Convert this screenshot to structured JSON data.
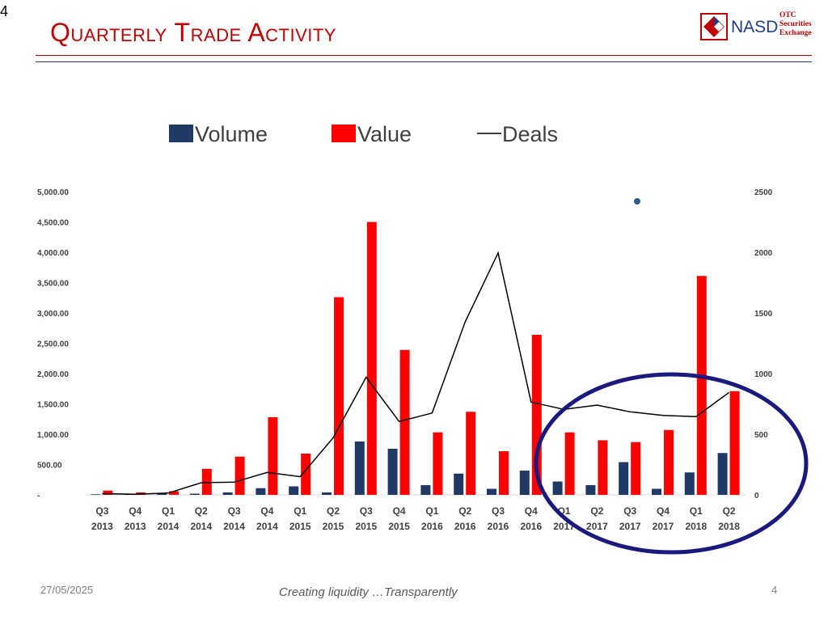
{
  "slide": {
    "corner_number": "4",
    "title": "Quarterly Trade Activity",
    "date": "27/05/2025",
    "tagline": "Creating liquidity …Transparently",
    "page_number": "4"
  },
  "logo": {
    "name": "NASD",
    "subtitle_lines": [
      "OTC",
      "Securities",
      "Exchange"
    ]
  },
  "colors": {
    "volume": "#1f3864",
    "value": "#ff0000",
    "deals": "#000000",
    "highlight_ellipse": "#1a1a7e",
    "title": "#c00000"
  },
  "chart_data": {
    "type": "bar",
    "categories": [
      "Q3 2013",
      "Q4 2013",
      "Q1 2014",
      "Q2 2014",
      "Q3 2014",
      "Q4 2014",
      "Q1 2015",
      "Q2 2015",
      "Q3 2015",
      "Q4 2015",
      "Q1 2016",
      "Q2 2016",
      "Q3 2016",
      "Q4 2016",
      "Q1 2017",
      "Q2 2017",
      "Q3 2017",
      "Q4 2017",
      "Q1 2018",
      "Q2 2018"
    ],
    "category_lines": [
      [
        "Q3",
        "2013"
      ],
      [
        "Q4",
        "2013"
      ],
      [
        "Q1",
        "2014"
      ],
      [
        "Q2",
        "2014"
      ],
      [
        "Q3",
        "2014"
      ],
      [
        "Q4",
        "2014"
      ],
      [
        "Q1",
        "2015"
      ],
      [
        "Q2",
        "2015"
      ],
      [
        "Q3",
        "2015"
      ],
      [
        "Q4",
        "2015"
      ],
      [
        "Q1",
        "2016"
      ],
      [
        "Q2",
        "2016"
      ],
      [
        "Q3",
        "2016"
      ],
      [
        "Q4",
        "2016"
      ],
      [
        "Q1",
        "2017"
      ],
      [
        "Q2",
        "2017"
      ],
      [
        "Q3",
        "2017"
      ],
      [
        "Q4",
        "2017"
      ],
      [
        "Q1",
        "2018"
      ],
      [
        "Q2",
        "2018"
      ]
    ],
    "series": [
      {
        "name": "Volume",
        "axis": "left",
        "kind": "bar",
        "values": [
          10,
          10,
          30,
          20,
          40,
          110,
          140,
          40,
          880,
          760,
          160,
          350,
          100,
          400,
          220,
          160,
          540,
          100,
          370,
          690
        ]
      },
      {
        "name": "Value",
        "axis": "left",
        "kind": "bar",
        "values": [
          70,
          40,
          60,
          430,
          630,
          1280,
          680,
          3260,
          4500,
          2390,
          1030,
          1370,
          720,
          2640,
          1030,
          900,
          870,
          1070,
          3610,
          1710
        ]
      },
      {
        "name": "Deals",
        "axis": "right",
        "kind": "line",
        "values": [
          10,
          5,
          15,
          100,
          105,
          185,
          150,
          470,
          970,
          605,
          675,
          1425,
          1995,
          765,
          705,
          740,
          685,
          655,
          645,
          845
        ]
      }
    ],
    "legend": [
      "Volume",
      "Value",
      "Deals"
    ],
    "legend_position": "top",
    "y_left": {
      "lim": [
        0,
        5000
      ],
      "ticks": [
        0,
        500,
        1000,
        1500,
        2000,
        2500,
        3000,
        3500,
        4000,
        4500,
        5000
      ],
      "tick_labels": [
        "-",
        "500.00",
        "1,000.00",
        "1,500.00",
        "2,000.00",
        "2,500.00",
        "3,000.00",
        "3,500.00",
        "4,000.00",
        "4,500.00",
        "5,000.00"
      ]
    },
    "y_right": {
      "lim": [
        0,
        2500
      ],
      "ticks": [
        0,
        500,
        1000,
        1500,
        2000,
        2500
      ],
      "tick_labels": [
        "0",
        "500",
        "1000",
        "1500",
        "2000",
        "2500"
      ]
    },
    "grid": false,
    "annotation": "ellipse highlighting Q1 2017 – Q2 2018"
  }
}
